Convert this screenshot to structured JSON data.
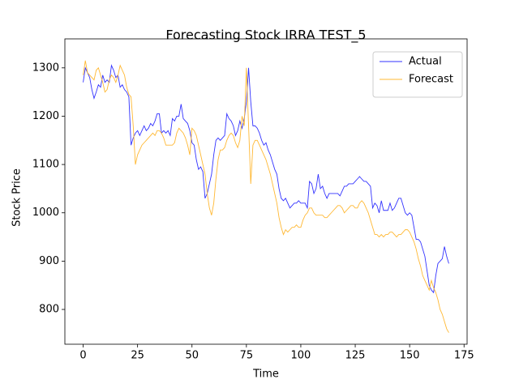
{
  "chart_data": {
    "type": "line",
    "title": "Forecasting Stock IRRA TEST_5",
    "xlabel": "Time",
    "ylabel": "Stock Price",
    "x": [
      0,
      1,
      2,
      3,
      4,
      5,
      6,
      7,
      8,
      9,
      10,
      11,
      12,
      13,
      14,
      15,
      16,
      17,
      18,
      19,
      20,
      21,
      22,
      23,
      24,
      25,
      26,
      27,
      28,
      29,
      30,
      31,
      32,
      33,
      34,
      35,
      36,
      37,
      38,
      39,
      40,
      41,
      42,
      43,
      44,
      45,
      46,
      47,
      48,
      49,
      50,
      51,
      52,
      53,
      54,
      55,
      56,
      57,
      58,
      59,
      60,
      61,
      62,
      63,
      64,
      65,
      66,
      67,
      68,
      69,
      70,
      71,
      72,
      73,
      74,
      75,
      76,
      77,
      78,
      79,
      80,
      81,
      82,
      83,
      84,
      85,
      86,
      87,
      88,
      89,
      90,
      91,
      92,
      93,
      94,
      95,
      96,
      97,
      98,
      99,
      100,
      101,
      102,
      103,
      104,
      105,
      106,
      107,
      108,
      109,
      110,
      111,
      112,
      113,
      114,
      115,
      116,
      117,
      118,
      119,
      120,
      121,
      122,
      123,
      124,
      125,
      126,
      127,
      128,
      129,
      130,
      131,
      132,
      133,
      134,
      135,
      136,
      137,
      138,
      139,
      140,
      141,
      142,
      143,
      144,
      145,
      146,
      147,
      148,
      149,
      150,
      151,
      152,
      153,
      154,
      155,
      156,
      157,
      158,
      159,
      160,
      161,
      162,
      163,
      164,
      165,
      166,
      167,
      168
    ],
    "series": [
      {
        "name": "Actual",
        "color": "#3333ff",
        "values": [
          1270,
          1300,
          1290,
          1280,
          1255,
          1237,
          1250,
          1265,
          1260,
          1285,
          1270,
          1275,
          1270,
          1305,
          1295,
          1280,
          1285,
          1260,
          1265,
          1255,
          1250,
          1240,
          1140,
          1155,
          1165,
          1170,
          1160,
          1170,
          1180,
          1170,
          1175,
          1185,
          1180,
          1190,
          1205,
          1205,
          1165,
          1170,
          1165,
          1170,
          1160,
          1195,
          1190,
          1200,
          1200,
          1225,
          1195,
          1190,
          1185,
          1170,
          1145,
          1140,
          1110,
          1090,
          1095,
          1085,
          1030,
          1040,
          1060,
          1080,
          1120,
          1150,
          1155,
          1150,
          1155,
          1160,
          1205,
          1195,
          1190,
          1180,
          1160,
          1170,
          1190,
          1175,
          1195,
          1230,
          1300,
          1230,
          1180,
          1180,
          1175,
          1165,
          1150,
          1140,
          1145,
          1130,
          1120,
          1105,
          1090,
          1080,
          1050,
          1030,
          1025,
          1030,
          1020,
          1010,
          1015,
          1020,
          1020,
          1025,
          1020,
          1020,
          1020,
          1010,
          1065,
          1060,
          1040,
          1050,
          1080,
          1050,
          1055,
          1040,
          1030,
          1040,
          1040,
          1040,
          1040,
          1040,
          1035,
          1045,
          1055,
          1055,
          1060,
          1060,
          1060,
          1065,
          1070,
          1075,
          1070,
          1065,
          1065,
          1060,
          1055,
          1010,
          1020,
          1015,
          1000,
          1025,
          1005,
          1005,
          1005,
          1020,
          1005,
          1010,
          1020,
          1030,
          1030,
          1015,
          1000,
          995,
          1000,
          995,
          970,
          945,
          945,
          940,
          925,
          910,
          880,
          850,
          840,
          835,
          870,
          895,
          900,
          905,
          930,
          910,
          895
        ]
      },
      {
        "name": "Forecast",
        "color": "#ffb833",
        "values": [
          1285,
          1315,
          1290,
          1285,
          1280,
          1275,
          1295,
          1300,
          1285,
          1270,
          1250,
          1255,
          1275,
          1285,
          1280,
          1270,
          1285,
          1305,
          1295,
          1285,
          1260,
          1245,
          1240,
          1180,
          1100,
          1120,
          1130,
          1140,
          1145,
          1150,
          1155,
          1160,
          1165,
          1160,
          1170,
          1170,
          1165,
          1155,
          1140,
          1140,
          1140,
          1140,
          1145,
          1165,
          1175,
          1170,
          1165,
          1155,
          1140,
          1120,
          1175,
          1170,
          1160,
          1140,
          1120,
          1100,
          1080,
          1040,
          1010,
          995,
          1020,
          1070,
          1110,
          1130,
          1130,
          1135,
          1150,
          1160,
          1165,
          1160,
          1145,
          1135,
          1150,
          1200,
          1180,
          1300,
          1180,
          1060,
          1140,
          1150,
          1150,
          1140,
          1130,
          1120,
          1110,
          1095,
          1080,
          1060,
          1040,
          1020,
          990,
          970,
          955,
          965,
          960,
          965,
          970,
          970,
          975,
          970,
          970,
          985,
          995,
          1000,
          1010,
          1010,
          1000,
          995,
          995,
          995,
          995,
          990,
          990,
          995,
          1000,
          1005,
          1010,
          1015,
          1015,
          1010,
          1000,
          1005,
          1010,
          1015,
          1015,
          1010,
          1010,
          1020,
          1025,
          1020,
          1010,
          1000,
          985,
          970,
          955,
          955,
          950,
          955,
          950,
          955,
          955,
          960,
          960,
          955,
          950,
          955,
          955,
          960,
          965,
          965,
          960,
          950,
          940,
          925,
          905,
          890,
          870,
          860,
          850,
          840,
          860,
          845,
          835,
          820,
          800,
          790,
          775,
          760,
          752
        ]
      }
    ],
    "xlim": [
      -8.4,
      176.4
    ],
    "ylim": [
      728,
      1360
    ],
    "xticks": [
      0,
      25,
      50,
      75,
      100,
      125,
      150,
      175
    ],
    "yticks": [
      800,
      900,
      1000,
      1100,
      1200,
      1300
    ],
    "legend": "upper right"
  }
}
